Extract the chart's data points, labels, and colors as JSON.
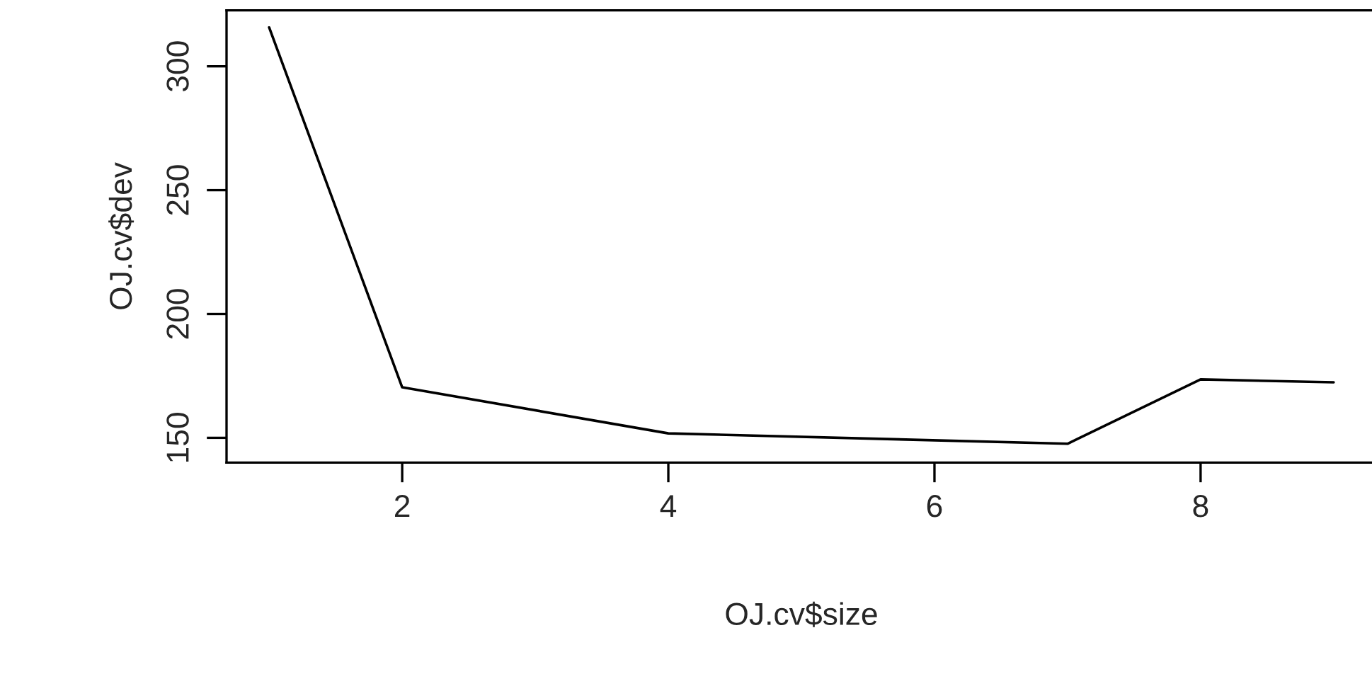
{
  "chart_data": {
    "type": "line",
    "xlabel": "OJ.cv$size",
    "ylabel": "OJ.cv$dev",
    "x": [
      1,
      2,
      4,
      7,
      8,
      9
    ],
    "series": [
      {
        "color": "#000000",
        "values": [
          315.7,
          170.4,
          151.8,
          147.6,
          173.6,
          172.4
        ]
      }
    ],
    "xlim": [
      0.68,
      9.32
    ],
    "ylim": [
      140,
      322.6
    ],
    "xticks": [
      2,
      4,
      6,
      8
    ],
    "yticks": [
      150,
      200,
      250,
      300
    ],
    "grid": false,
    "legend": false,
    "marker": "none",
    "line_style": "solid"
  }
}
